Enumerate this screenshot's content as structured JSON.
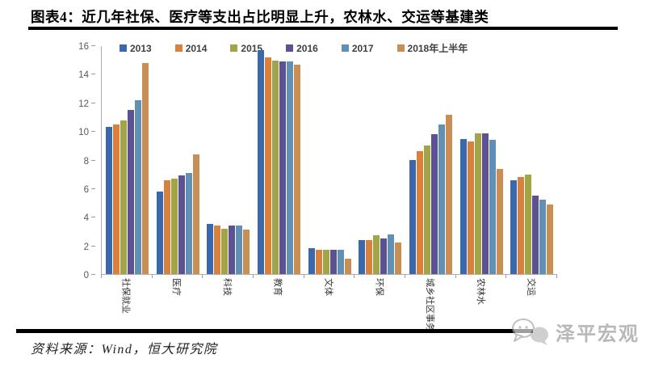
{
  "title": "图表4：近几年社保、医疗等支出占比明显上升，农林水、交运等基建类",
  "source_text": "资料来源：Wind，恒大研究院",
  "watermark_text": "泽平宏观",
  "chart_data": {
    "type": "bar",
    "title": "",
    "xlabel": "",
    "ylabel": "",
    "ylim": [
      0,
      16
    ],
    "ytick_step": 2,
    "grid": false,
    "legend_position": "top",
    "categories": [
      "社保就业",
      "医疗",
      "科技",
      "教育",
      "文体",
      "环保",
      "城乡社区事务",
      "农林水",
      "交运"
    ],
    "series": [
      {
        "name": "2013",
        "color": "#3A68AD",
        "values": [
          10.3,
          5.8,
          3.5,
          15.7,
          1.8,
          2.4,
          8.0,
          9.5,
          6.6
        ]
      },
      {
        "name": "2014",
        "color": "#D9813A",
        "values": [
          10.5,
          6.6,
          3.4,
          15.2,
          1.7,
          2.4,
          8.6,
          9.3,
          6.8
        ]
      },
      {
        "name": "2015",
        "color": "#A3A348",
        "values": [
          10.8,
          6.7,
          3.2,
          15.0,
          1.7,
          2.7,
          9.0,
          9.9,
          7.0
        ]
      },
      {
        "name": "2016",
        "color": "#5D5291",
        "values": [
          11.5,
          6.9,
          3.4,
          14.9,
          1.7,
          2.5,
          9.8,
          9.9,
          5.5
        ]
      },
      {
        "name": "2017",
        "color": "#6290B4",
        "values": [
          12.2,
          7.1,
          3.4,
          14.9,
          1.7,
          2.8,
          10.5,
          9.4,
          5.2
        ]
      },
      {
        "name": "2018年上半年",
        "color": "#C98E53",
        "values": [
          14.8,
          8.4,
          3.1,
          14.7,
          1.1,
          2.2,
          11.2,
          7.4,
          4.9
        ]
      }
    ]
  }
}
